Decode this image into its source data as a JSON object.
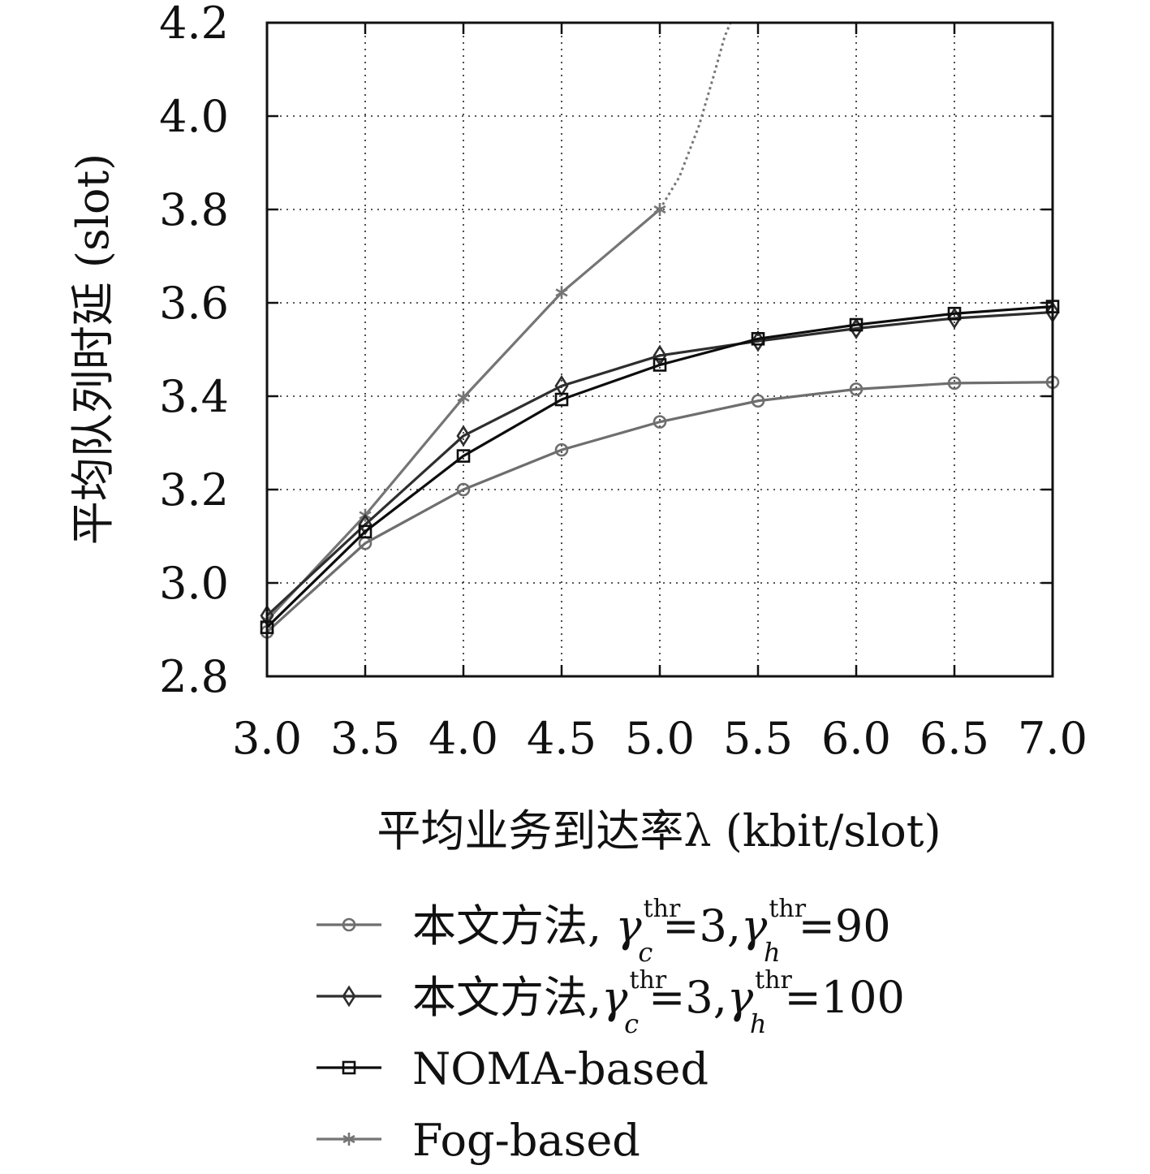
{
  "chart_data": {
    "type": "line",
    "xlabel": "平均业务到达率λ (kbit/slot)",
    "ylabel": "平均队列时延 (slot)",
    "xlim": [
      3.0,
      7.0
    ],
    "ylim": [
      2.8,
      4.2
    ],
    "xticks": [
      "3.0",
      "3.5",
      "4.0",
      "4.5",
      "5.0",
      "5.5",
      "6.0",
      "6.5",
      "7.0"
    ],
    "yticks": [
      "2.8",
      "3.0",
      "3.2",
      "3.4",
      "3.6",
      "3.8",
      "4.0",
      "4.2"
    ],
    "grid": true,
    "legend_position": "bottom",
    "series": [
      {
        "name": "本文方法, γ_c^thr=3,γ_h^thr=90",
        "legend": {
          "prefix": "本文方法, ",
          "gamma": "γ",
          "sup1": "thr",
          "sub1": "c",
          "mid": "=3,",
          "sup2": "thr",
          "sub2": "h",
          "suffix": "=90"
        },
        "marker": "circle",
        "color": "#6e6e6e",
        "x": [
          3.0,
          3.5,
          4.0,
          4.5,
          5.0,
          5.5,
          6.0,
          6.5,
          7.0
        ],
        "y": [
          2.895,
          3.085,
          3.2,
          3.285,
          3.345,
          3.39,
          3.415,
          3.428,
          3.43
        ]
      },
      {
        "name": "本文方法,γ_c^thr=3,γ_h^thr=100",
        "legend": {
          "prefix": "本文方法,",
          "gamma": "γ",
          "sup1": "thr",
          "sub1": "c",
          "mid": "=3,",
          "sup2": "thr",
          "sub2": "h",
          "suffix": "=100"
        },
        "marker": "diamond",
        "color": "#2e2e2e",
        "x": [
          3.0,
          3.5,
          4.0,
          4.5,
          5.0,
          5.5,
          6.0,
          6.5,
          7.0
        ],
        "y": [
          2.93,
          3.125,
          3.315,
          3.422,
          3.487,
          3.518,
          3.545,
          3.567,
          3.58
        ]
      },
      {
        "name": "NOMA-based",
        "marker": "square",
        "color": "#0d0d0d",
        "x": [
          3.0,
          3.5,
          4.0,
          4.5,
          5.0,
          5.5,
          6.0,
          6.5,
          7.0
        ],
        "y": [
          2.905,
          3.11,
          3.272,
          3.393,
          3.467,
          3.523,
          3.553,
          3.577,
          3.592
        ]
      },
      {
        "name": "Fog-based",
        "marker": "star",
        "color": "#757575",
        "x": [
          3.0,
          3.5,
          4.0,
          4.5,
          5.0
        ],
        "y": [
          2.92,
          3.145,
          3.397,
          3.622,
          3.8
        ],
        "extension_dotted": {
          "x": [
            5.0,
            5.1,
            5.2,
            5.27,
            5.33,
            5.36
          ],
          "y": [
            3.8,
            3.87,
            3.98,
            4.08,
            4.17,
            4.2
          ]
        }
      }
    ]
  }
}
